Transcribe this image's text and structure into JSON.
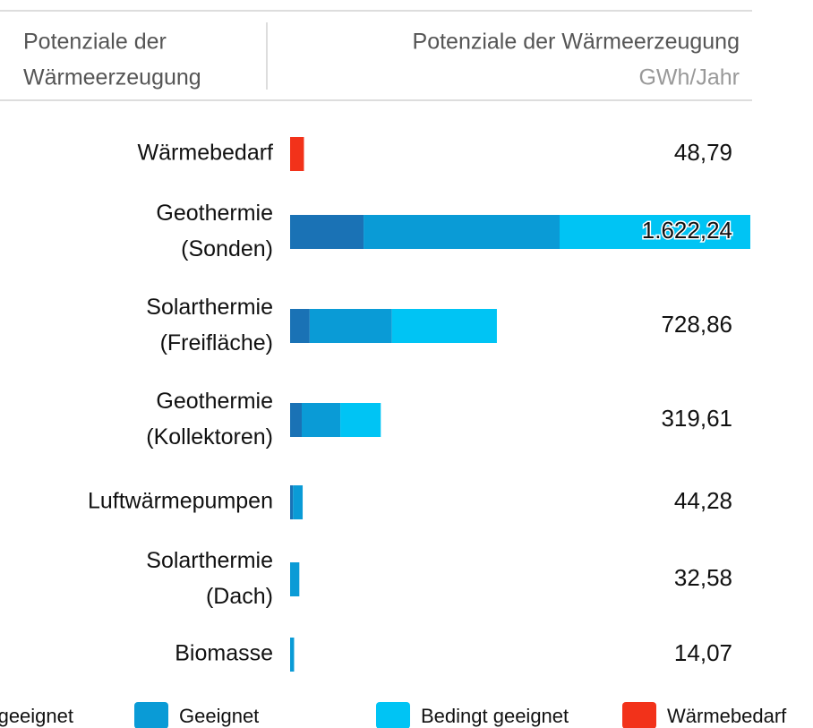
{
  "chart_data": {
    "type": "bar",
    "orientation": "horizontal",
    "stacked": true,
    "header": {
      "left": [
        "Potenziale der",
        "Wärmeerzeugung"
      ],
      "title": "Potenziale der Wärmeerzeugung",
      "unit": "GWh/Jahr"
    },
    "categories": [
      "Wärmebedarf",
      "Geothermie (Sonden)",
      "Solarthermie (Freifläche)",
      "Geothermie (Kollektoren)",
      "Luftwärmepumpen",
      "Solarthermie (Dach)",
      "Biomasse"
    ],
    "series": [
      {
        "name": "geeignet",
        "color": "#1a72b5",
        "values": [
          null,
          259,
          69,
          41,
          10,
          null,
          null
        ]
      },
      {
        "name": "Geeignet",
        "color": "#0a9bd6",
        "values": [
          null,
          691,
          290,
          136,
          34.28,
          32.58,
          14.07
        ]
      },
      {
        "name": "Bedingt geeignet",
        "color": "#00c4f4",
        "values": [
          null,
          672.24,
          369.86,
          142.61,
          null,
          null,
          null
        ]
      },
      {
        "name": "Wärmebedarf",
        "color": "#f2321a",
        "values": [
          48.79,
          null,
          null,
          null,
          null,
          null,
          null
        ]
      }
    ],
    "totals": [
      48.79,
      1622.24,
      728.86,
      319.61,
      44.28,
      32.58,
      14.07
    ],
    "total_labels": [
      "48,79",
      "1.622,24",
      "728,86",
      "319,61",
      "44,28",
      "32,58",
      "14,07"
    ],
    "xlim": [
      0,
      1622.24
    ]
  }
}
